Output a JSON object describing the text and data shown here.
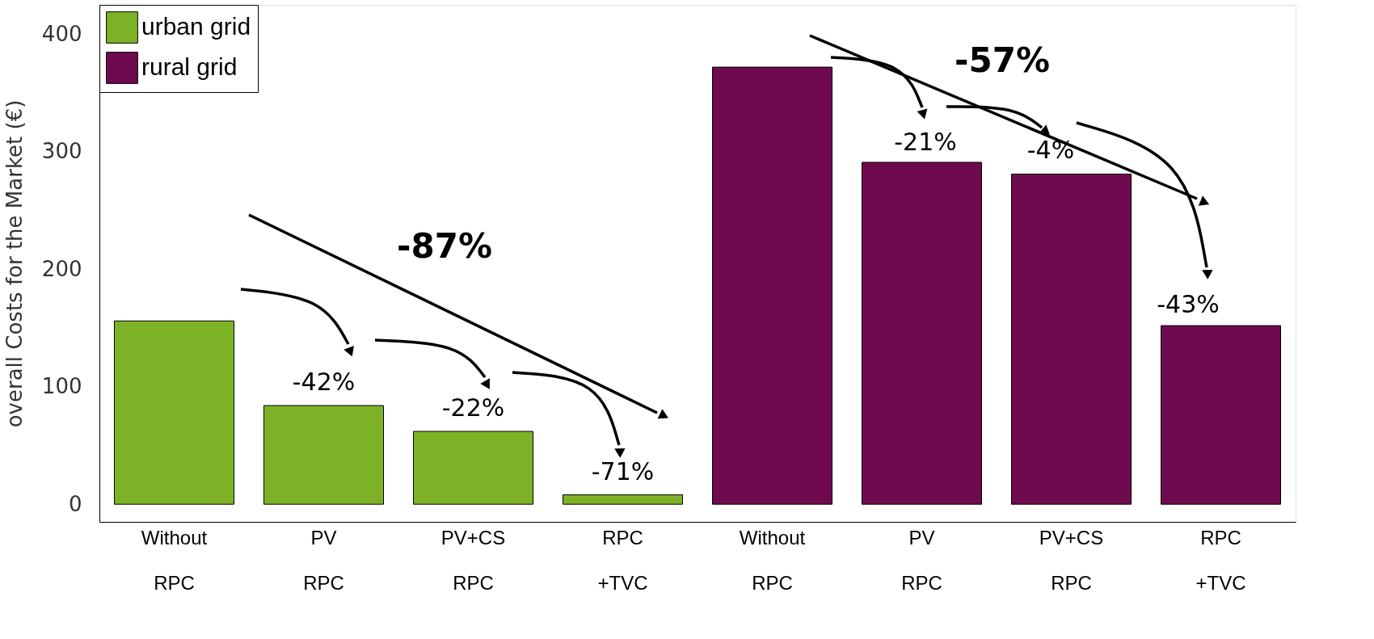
{
  "chart_data": {
    "type": "bar",
    "ylabel": "overall Costs for the Market (€)",
    "categories": [
      "Without RPC",
      "PV RPC",
      "PV+CS RPC",
      "RPC +TVC",
      "Without RPC",
      "PV RPC",
      "PV+CS RPC",
      "RPC +TVC"
    ],
    "series": [
      {
        "name": "urban grid",
        "color": "#7db227",
        "values": [
          156,
          84,
          62,
          8,
          null,
          null,
          null,
          null
        ]
      },
      {
        "name": "rural grid",
        "color": "#700a4f",
        "values": [
          null,
          null,
          null,
          null,
          372,
          291,
          281,
          152
        ]
      }
    ],
    "ylim": [
      -15,
      425
    ],
    "yticks": [
      0,
      100,
      200,
      300,
      400
    ],
    "grid": false,
    "legend": "top left",
    "annotations": [
      "-87%",
      "-57%",
      {
        "text": "-42%",
        "x": "PV RPC",
        "y": 84
      },
      {
        "text": "-22%",
        "x": "PV+CS RPC",
        "y": 62
      },
      {
        "text": "-71%",
        "x": "RPC +TVC",
        "y": 8
      },
      "-21%",
      "-4%",
      "-43%"
    ]
  }
}
